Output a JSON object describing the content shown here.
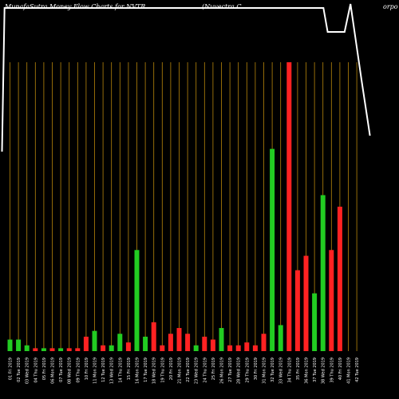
{
  "header": {
    "title": "MunafaSutra  Money Flow  Charts for NVTR",
    "company": "(Nuvectra  C",
    "company_tail": "orpo"
  },
  "chart_data": {
    "type": "bar",
    "title": "MunafaSutra  Money Flow  Charts for NVTR (Nuvectra  Corpo",
    "xlabel": "",
    "ylabel": "",
    "ylim": [
      0,
      100
    ],
    "grid": true,
    "legend": "none",
    "colors": {
      "inflow": "#22cc22",
      "outflow": "#ff2222",
      "line": "#ffffff",
      "grid": "#b8860b"
    },
    "categories": [
      "01 Fri 2019",
      "02 Tue 2019",
      "03 Wed 2019",
      "04 Thu 2019",
      "05 Fri 2019",
      "06 Mon 2019",
      "07 Tue 2019",
      "08 Wed 2019",
      "09 Thu 2019",
      "10 Fri 2019",
      "11 Mon 2019",
      "12 Tue 2019",
      "13 Wed 2019",
      "14 Thu 2019",
      "15 Fri 2019",
      "16 Mon 2019",
      "17 Tue 2019",
      "18 Wed 2019",
      "19 Thu 2019",
      "20 Fri 2019",
      "21 Mon 2019",
      "22 Tue 2019",
      "23 Wed 2019",
      "24 Thu 2019",
      "25 Fri 2019",
      "26 Mon 2019",
      "27 Tue 2019",
      "28 Wed 2019",
      "29 Thu 2019",
      "30 Fri 2019",
      "31 Mon 2019",
      "32 Tue 2019",
      "33 Wed 2019",
      "34 Thu 2019",
      "35 Fri 2019",
      "36 Mon 2019",
      "37 Tue 2019",
      "38 Wed 2019",
      "39 Thu 2019",
      "40 Fri 2019",
      "41 Mon 2019",
      "42 Tue 2019"
    ],
    "bars": [
      {
        "value": 4,
        "dir": "in"
      },
      {
        "value": 4,
        "dir": "in"
      },
      {
        "value": 2,
        "dir": "in"
      },
      {
        "value": 1,
        "dir": "out"
      },
      {
        "value": 1,
        "dir": "in"
      },
      {
        "value": 1,
        "dir": "out"
      },
      {
        "value": 1,
        "dir": "in"
      },
      {
        "value": 1,
        "dir": "out"
      },
      {
        "value": 1,
        "dir": "out"
      },
      {
        "value": 5,
        "dir": "out"
      },
      {
        "value": 7,
        "dir": "in"
      },
      {
        "value": 2,
        "dir": "out"
      },
      {
        "value": 2,
        "dir": "in"
      },
      {
        "value": 6,
        "dir": "in"
      },
      {
        "value": 3,
        "dir": "out"
      },
      {
        "value": 35,
        "dir": "in"
      },
      {
        "value": 5,
        "dir": "in"
      },
      {
        "value": 10,
        "dir": "out"
      },
      {
        "value": 2,
        "dir": "out"
      },
      {
        "value": 6,
        "dir": "out"
      },
      {
        "value": 8,
        "dir": "out"
      },
      {
        "value": 6,
        "dir": "out"
      },
      {
        "value": 2,
        "dir": "in"
      },
      {
        "value": 5,
        "dir": "out"
      },
      {
        "value": 4,
        "dir": "out"
      },
      {
        "value": 8,
        "dir": "in"
      },
      {
        "value": 2,
        "dir": "out"
      },
      {
        "value": 2,
        "dir": "out"
      },
      {
        "value": 3,
        "dir": "out"
      },
      {
        "value": 2,
        "dir": "out"
      },
      {
        "value": 6,
        "dir": "out"
      },
      {
        "value": 70,
        "dir": "in"
      },
      {
        "value": 9,
        "dir": "in"
      },
      {
        "value": 100,
        "dir": "out"
      },
      {
        "value": 28,
        "dir": "out"
      },
      {
        "value": 33,
        "dir": "out"
      },
      {
        "value": 20,
        "dir": "in"
      },
      {
        "value": 54,
        "dir": "in"
      },
      {
        "value": 35,
        "dir": "out"
      },
      {
        "value": 50,
        "dir": "out"
      },
      {
        "value": 0,
        "dir": "out"
      },
      {
        "value": 0,
        "dir": "out"
      }
    ],
    "price_line": [
      {
        "bar": 0,
        "y": 190
      },
      {
        "bar": 0.3,
        "y": 10
      },
      {
        "bar": 38,
        "y": 10
      },
      {
        "bar": 38.5,
        "y": 40
      },
      {
        "bar": 40.5,
        "y": 40
      },
      {
        "bar": 41.2,
        "y": 5
      },
      {
        "bar": 42.5,
        "y": 100
      },
      {
        "bar": 43.5,
        "y": 170
      }
    ]
  }
}
